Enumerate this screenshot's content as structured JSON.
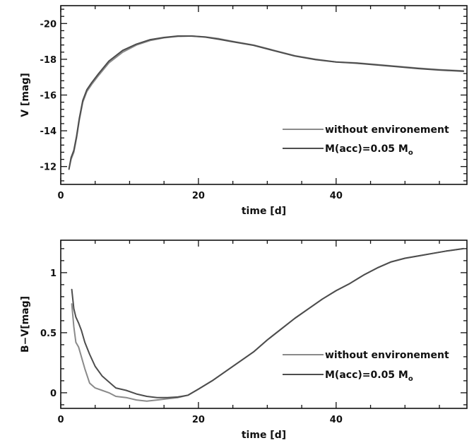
{
  "colors": {
    "without_environment": "#8a8a8a",
    "m_acc": "#4d4d4d",
    "axes": "#111111"
  },
  "chart_data": [
    {
      "type": "line",
      "xlabel": "time [d]",
      "ylabel": "V [mag]",
      "xlim": [
        0,
        59
      ],
      "ylim": [
        -11,
        -21
      ],
      "y_inverted": true,
      "xticks": [
        0,
        20,
        40
      ],
      "xtick_labels": [
        "0",
        "20",
        "40"
      ],
      "yticks": [
        -12,
        -14,
        -16,
        -18,
        -20
      ],
      "ytick_labels": [
        "-12",
        "-14",
        "-16",
        "-18",
        "-20"
      ],
      "legend_position": "lower-right",
      "series": [
        {
          "name": "without environement",
          "color_key": "without_environment",
          "x": [
            1.2,
            1.5,
            1.9,
            2.3,
            2.7,
            3.2,
            3.8,
            4.5,
            5.5,
            7,
            9,
            11,
            13,
            15,
            17,
            19,
            21,
            23,
            25,
            28,
            31,
            34,
            37,
            40,
            43,
            46,
            49,
            52,
            55,
            58.5
          ],
          "y": [
            -11.9,
            -12.4,
            -12.8,
            -13.6,
            -14.6,
            -15.6,
            -16.2,
            -16.6,
            -17.1,
            -17.8,
            -18.4,
            -18.8,
            -19.05,
            -19.2,
            -19.28,
            -19.3,
            -19.25,
            -19.15,
            -19.0,
            -18.8,
            -18.5,
            -18.2,
            -18.0,
            -17.85,
            -17.8,
            -17.7,
            -17.6,
            -17.5,
            -17.42,
            -17.35
          ]
        },
        {
          "name": "M(acc)=0.05 M",
          "name_subscript": "o",
          "color_key": "m_acc",
          "x": [
            1.2,
            1.5,
            1.9,
            2.3,
            2.7,
            3.2,
            3.8,
            4.5,
            5.5,
            7,
            9,
            11,
            13,
            15,
            17,
            19,
            21,
            23,
            25,
            28,
            31,
            34,
            37,
            40,
            43,
            46,
            49,
            52,
            55,
            58.5
          ],
          "y": [
            -11.85,
            -12.5,
            -12.9,
            -13.7,
            -14.7,
            -15.7,
            -16.3,
            -16.7,
            -17.2,
            -17.9,
            -18.5,
            -18.85,
            -19.1,
            -19.22,
            -19.3,
            -19.3,
            -19.24,
            -19.12,
            -18.98,
            -18.78,
            -18.48,
            -18.18,
            -17.98,
            -17.85,
            -17.78,
            -17.68,
            -17.58,
            -17.48,
            -17.4,
            -17.33
          ]
        }
      ]
    },
    {
      "type": "line",
      "xlabel": "time [d]",
      "ylabel": "B−V[mag]",
      "xlim": [
        0,
        59
      ],
      "ylim": [
        -0.13,
        1.27
      ],
      "y_inverted": false,
      "xticks": [
        0,
        20,
        40
      ],
      "xtick_labels": [
        "0",
        "20",
        "40"
      ],
      "yticks": [
        0,
        0.5,
        1
      ],
      "ytick_labels": [
        "0",
        "0.5",
        "1"
      ],
      "legend_position": "lower-right",
      "series": [
        {
          "name": "without environement",
          "color_key": "without_environment",
          "x": [
            1.6,
            1.9,
            2.2,
            2.6,
            3.0,
            3.5,
            4.2,
            5.0,
            6.0,
            7.0,
            8.0,
            9.5,
            11,
            12.5,
            14,
            15.5,
            17,
            18.5,
            20,
            22,
            24,
            26,
            28,
            30,
            32,
            34,
            36,
            38,
            40,
            42,
            44,
            46,
            48,
            50,
            52,
            54,
            56,
            58.5
          ],
          "y": [
            0.74,
            0.55,
            0.42,
            0.38,
            0.3,
            0.2,
            0.08,
            0.04,
            0.02,
            0.0,
            -0.03,
            -0.04,
            -0.06,
            -0.07,
            -0.06,
            -0.05,
            -0.04,
            -0.02,
            0.03,
            0.1,
            0.18,
            0.26,
            0.34,
            0.44,
            0.53,
            0.62,
            0.7,
            0.78,
            0.85,
            0.91,
            0.98,
            1.04,
            1.09,
            1.12,
            1.14,
            1.16,
            1.18,
            1.2
          ]
        },
        {
          "name": "M(acc)=0.05 M",
          "name_subscript": "o",
          "color_key": "m_acc",
          "x": [
            1.6,
            1.9,
            2.2,
            2.6,
            3.0,
            3.5,
            4.2,
            5.0,
            6.0,
            7.0,
            8.0,
            9.5,
            11,
            12.5,
            14,
            15.5,
            17,
            18.5,
            20,
            22,
            24,
            26,
            28,
            30,
            32,
            34,
            36,
            38,
            40,
            42,
            44,
            46,
            48,
            50,
            52,
            54,
            56,
            58.5
          ],
          "y": [
            0.86,
            0.7,
            0.63,
            0.58,
            0.52,
            0.42,
            0.32,
            0.22,
            0.14,
            0.09,
            0.04,
            0.02,
            -0.01,
            -0.03,
            -0.04,
            -0.04,
            -0.035,
            -0.02,
            0.03,
            0.1,
            0.18,
            0.26,
            0.34,
            0.44,
            0.53,
            0.62,
            0.7,
            0.78,
            0.85,
            0.91,
            0.98,
            1.04,
            1.09,
            1.12,
            1.14,
            1.16,
            1.18,
            1.2
          ]
        }
      ]
    }
  ]
}
